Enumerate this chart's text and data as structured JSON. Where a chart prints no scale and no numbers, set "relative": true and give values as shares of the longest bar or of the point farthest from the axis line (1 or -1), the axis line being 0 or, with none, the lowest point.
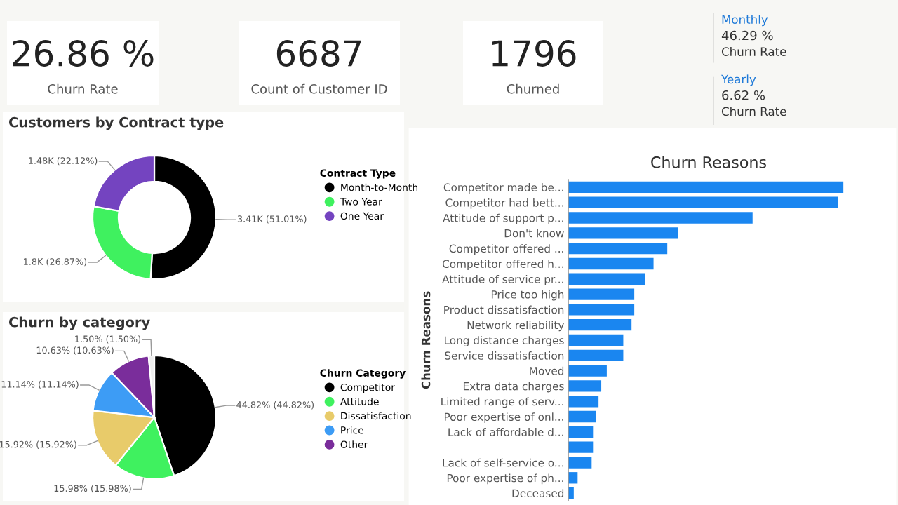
{
  "chart_data": [
    {
      "type": "other",
      "annotations": [
        "26.86 %",
        "Churn Rate"
      ]
    },
    {
      "type": "other",
      "annotations": [
        "6687",
        "Count of Customer ID"
      ]
    },
    {
      "type": "other",
      "annotations": [
        "1796",
        "Churned"
      ]
    },
    {
      "type": "other",
      "annotations": [
        "Monthly",
        "46.29 %",
        "Churn Rate",
        "Yearly",
        "6.62 %",
        "Churn Rate"
      ]
    },
    {
      "type": "donut",
      "title": "Customers by Contract type",
      "legend_title": "Contract Type",
      "legend": "right",
      "categories": [
        "Month-to-Month",
        "Two Year",
        "One Year"
      ],
      "values": [
        3410,
        1800,
        1480
      ],
      "colors": [
        "#000000",
        "#3ff15f",
        "#7444c0"
      ],
      "value_labels": [
        "3.41K (51.01%)",
        "1.8K (26.87%)",
        "1.48K (22.12%)"
      ]
    },
    {
      "type": "pie",
      "title": "Churn by category",
      "legend_title": "Churn Category",
      "legend": "right",
      "categories": [
        "Competitor",
        "Attitude",
        "Dissatisfaction",
        "Price",
        "Other",
        null
      ],
      "values": [
        44.82,
        15.98,
        15.92,
        11.14,
        10.63,
        1.5
      ],
      "colors": [
        "#000000",
        "#3ff15f",
        "#e8cb6a",
        "#3d9cf5",
        "#7a2d9b",
        "#eeeeee"
      ],
      "value_labels": [
        "44.82% (44.82%)",
        "15.98% (15.98%)",
        "15.92% (15.92%)",
        "11.14% (11.14%)",
        "10.63% (10.63%)",
        "1.50% (1.50%)"
      ]
    },
    {
      "type": "bar",
      "orientation": "horizontal",
      "relative": true,
      "title": "Churn Reasons",
      "ylabel": "Churn Reasons",
      "color": "#1a86f0",
      "categories": [
        "Competitor made be...",
        "Competitor had bett...",
        "Attitude of support p...",
        "Don't know",
        "Competitor offered ...",
        "Competitor offered h...",
        "Attitude of service pr...",
        "Price too high",
        "Product dissatisfaction",
        "Network reliability",
        "Long distance charges",
        "Service dissatisfaction",
        "Moved",
        "Extra data charges",
        "Limited range of serv...",
        "Poor expertise of onl...",
        "Lack of affordable d...",
        null,
        "Lack of self-service o...",
        "Poor expertise of ph...",
        "Deceased"
      ],
      "values": [
        1,
        0.98,
        0.67,
        0.4,
        0.36,
        0.31,
        0.28,
        0.24,
        0.24,
        0.23,
        0.2,
        0.2,
        0.14,
        0.12,
        0.11,
        0.1,
        0.09,
        0.09,
        0.085,
        0.034,
        0.02
      ]
    }
  ]
}
